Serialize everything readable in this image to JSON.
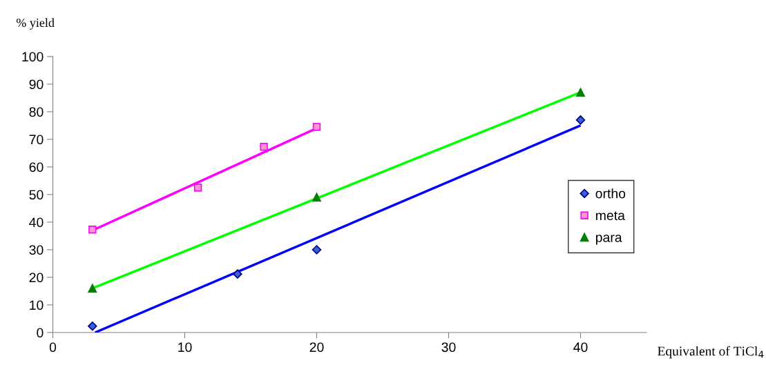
{
  "chart_data": {
    "type": "scatter",
    "xlabel": "Equivalent of TiCl$_{4}$",
    "ylabel": "% yield",
    "xlim": [
      0,
      45
    ],
    "ylim": [
      0,
      100
    ],
    "xticks": [
      0,
      10,
      20,
      30,
      40
    ],
    "yticks": [
      0,
      10,
      20,
      30,
      40,
      50,
      60,
      70,
      80,
      90,
      100
    ],
    "grid": false,
    "legend": "right",
    "series": [
      {
        "name": "ortho",
        "marker": "diamond",
        "color": "#3a5fdc",
        "x": [
          3,
          14,
          20,
          40
        ],
        "values": [
          2.3,
          21.2,
          30,
          77
        ]
      },
      {
        "name": "meta",
        "marker": "square",
        "color": "#ff99cc",
        "x": [
          3,
          11,
          16,
          20
        ],
        "values": [
          37.3,
          52.5,
          67.3,
          74.5
        ]
      },
      {
        "name": "para",
        "marker": "triangle",
        "color": "#008000",
        "x": [
          3,
          20,
          40
        ],
        "values": [
          16,
          49,
          87
        ]
      },
      {
        "type": "line",
        "marker": "none",
        "color": "#0000ff",
        "x": [
          3.2,
          40
        ],
        "values": [
          0,
          75
        ]
      },
      {
        "type": "line",
        "marker": "none",
        "color": "#ff00ff",
        "x": [
          3,
          20
        ],
        "values": [
          37,
          74
        ]
      },
      {
        "type": "line",
        "marker": "none",
        "color": "#00ff00",
        "x": [
          3,
          40
        ],
        "values": [
          16,
          87
        ]
      }
    ]
  }
}
